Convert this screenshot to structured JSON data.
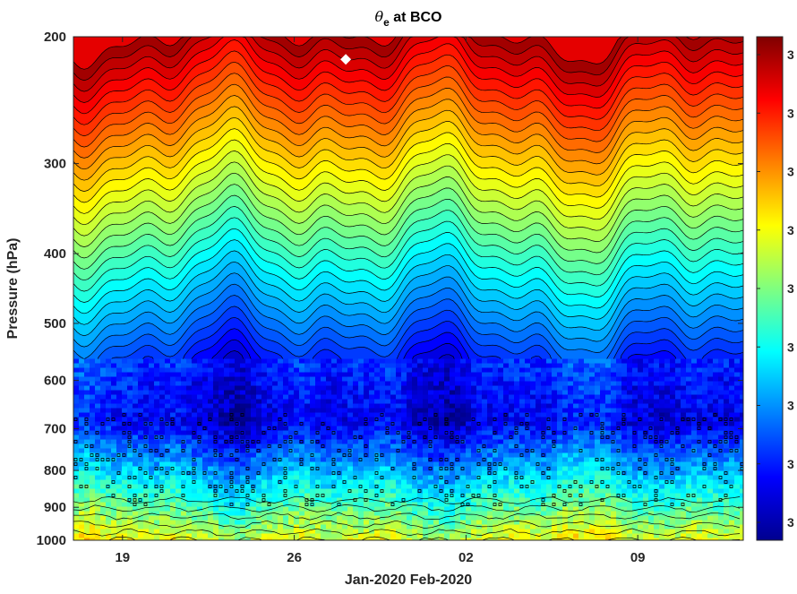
{
  "chart_data": {
    "type": "heatmap",
    "title_symbol": "θ",
    "title_subscript": "e",
    "title_rest": " at BCO",
    "xlabel": "Jan-2020 Feb-2020",
    "ylabel": "Pressure (hPa)",
    "y_scale": "log",
    "y_reversed": true,
    "ylim": [
      200,
      1000
    ],
    "xlim_days": [
      17.0,
      44.3
    ],
    "y_ticks": [
      {
        "value": 200,
        "label": "200"
      },
      {
        "value": 300,
        "label": "300"
      },
      {
        "value": 400,
        "label": "400"
      },
      {
        "value": 500,
        "label": "500"
      },
      {
        "value": 600,
        "label": "600"
      },
      {
        "value": 700,
        "label": "700"
      },
      {
        "value": 800,
        "label": "800"
      },
      {
        "value": 900,
        "label": "900"
      },
      {
        "value": 1000,
        "label": "1000"
      }
    ],
    "x_ticks": [
      {
        "day": 19,
        "label": "19"
      },
      {
        "day": 26,
        "label": "26"
      },
      {
        "day": 33,
        "label": "02"
      },
      {
        "day": 40,
        "label": "09"
      }
    ],
    "colormap": "jet",
    "colorbar_labels": [
      "3",
      "3",
      "3",
      "3",
      "3",
      "3",
      "3",
      "3",
      "3"
    ],
    "marker": {
      "shape": "diamond",
      "color": "#ffffff",
      "day": 28.1,
      "pressure": 215
    },
    "grid": false
  }
}
